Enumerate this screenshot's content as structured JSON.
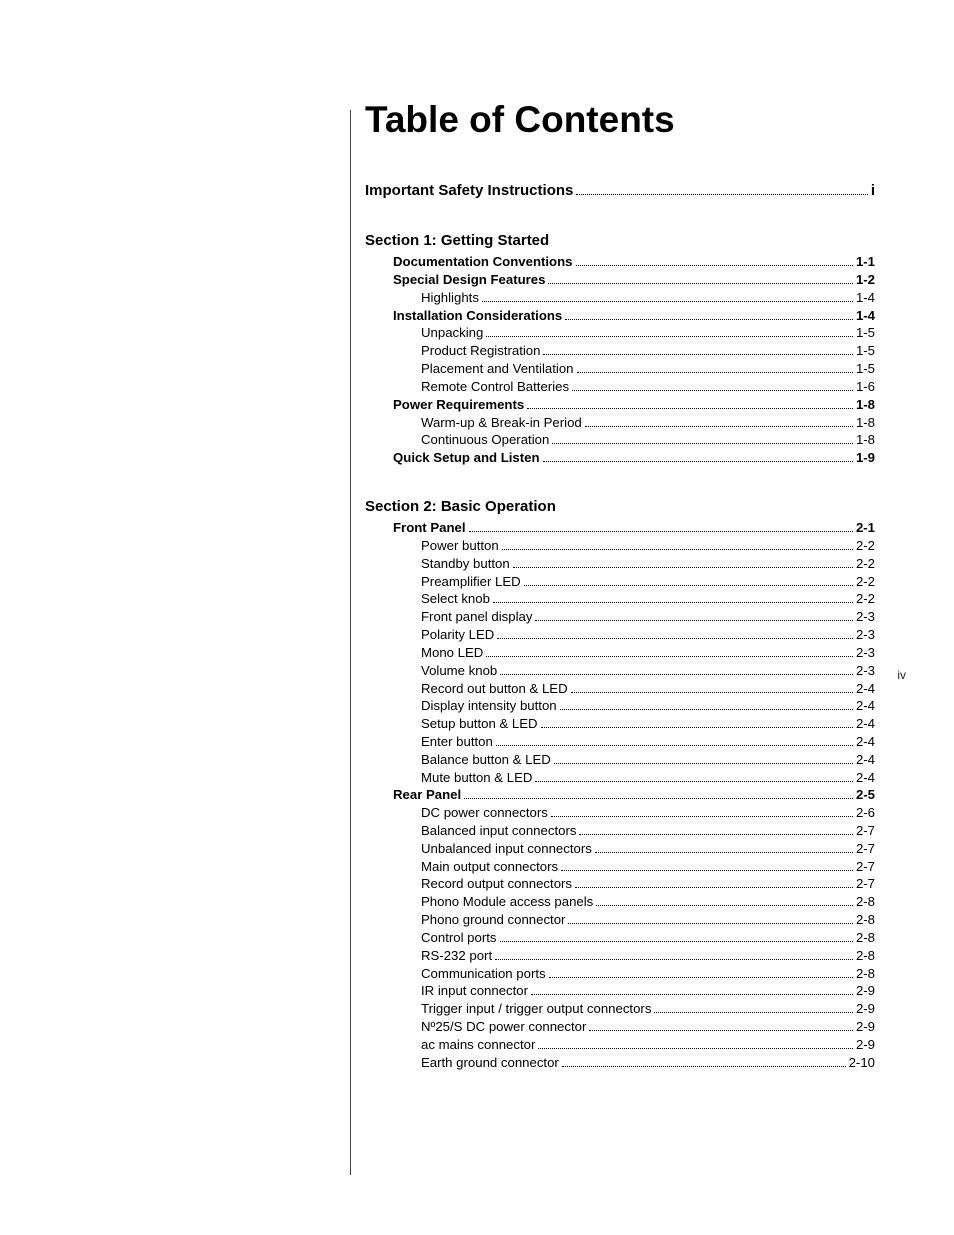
{
  "title": "Table of Contents",
  "side_page_num": "iv",
  "entries": [
    {
      "level": "top",
      "label": "Important Safety Instructions",
      "page": "i"
    },
    {
      "level": "section",
      "label": "Section 1: Getting Started"
    },
    {
      "level": 1,
      "label": "Documentation Conventions",
      "page": "1-1"
    },
    {
      "level": 1,
      "label": "Special Design Features",
      "page": "1-2"
    },
    {
      "level": 2,
      "label": "Highlights",
      "page": "1-4"
    },
    {
      "level": 1,
      "label": "Installation Considerations",
      "page": "1-4"
    },
    {
      "level": 2,
      "label": "Unpacking",
      "page": "1-5"
    },
    {
      "level": 2,
      "label": "Product Registration",
      "page": "1-5"
    },
    {
      "level": 2,
      "label": "Placement and Ventilation",
      "page": "1-5"
    },
    {
      "level": 2,
      "label": "Remote Control Batteries",
      "page": "1-6"
    },
    {
      "level": 1,
      "label": "Power Requirements",
      "page": "1-8"
    },
    {
      "level": 2,
      "label": "Warm-up & Break-in Period",
      "page": "1-8"
    },
    {
      "level": 2,
      "label": "Continuous Operation",
      "page": "1-8"
    },
    {
      "level": 1,
      "label": "Quick Setup and Listen",
      "page": "1-9"
    },
    {
      "level": "section",
      "label": "Section 2: Basic Operation"
    },
    {
      "level": 1,
      "label": "Front Panel",
      "page": "2-1"
    },
    {
      "level": 2,
      "label": "Power button",
      "page": "2-2"
    },
    {
      "level": 2,
      "label": "Standby button",
      "page": "2-2"
    },
    {
      "level": 2,
      "label": "Preamplifier LED",
      "page": "2-2"
    },
    {
      "level": 2,
      "label": "Select knob",
      "page": "2-2"
    },
    {
      "level": 2,
      "label": "Front panel display",
      "page": "2-3"
    },
    {
      "level": 2,
      "label": "Polarity LED",
      "page": "2-3"
    },
    {
      "level": 2,
      "label": "Mono LED",
      "page": "2-3"
    },
    {
      "level": 2,
      "label": "Volume knob",
      "page": "2-3"
    },
    {
      "level": 2,
      "label": "Record out button & LED",
      "page": "2-4"
    },
    {
      "level": 2,
      "label": "Display intensity button",
      "page": "2-4"
    },
    {
      "level": 2,
      "label": "Setup button & LED",
      "page": "2-4"
    },
    {
      "level": 2,
      "label": "Enter button",
      "page": "2-4"
    },
    {
      "level": 2,
      "label": "Balance button & LED",
      "page": "2-4"
    },
    {
      "level": 2,
      "label": "Mute button & LED",
      "page": "2-4"
    },
    {
      "level": 1,
      "label": "Rear Panel",
      "page": "2-5"
    },
    {
      "level": 2,
      "label": "DC power connectors",
      "page": "2-6"
    },
    {
      "level": 2,
      "label": "Balanced input connectors",
      "page": "2-7"
    },
    {
      "level": 2,
      "label": "Unbalanced input connectors",
      "page": "2-7"
    },
    {
      "level": 2,
      "label": "Main output connectors",
      "page": "2-7"
    },
    {
      "level": 2,
      "label": "Record output connectors",
      "page": "2-7"
    },
    {
      "level": 2,
      "label": "Phono Module access panels",
      "page": "2-8"
    },
    {
      "level": 2,
      "label": "Phono ground connector",
      "page": "2-8"
    },
    {
      "level": 2,
      "label": "Control ports",
      "page": "2-8"
    },
    {
      "level": 2,
      "label": "RS-232 port",
      "page": "2-8"
    },
    {
      "level": 2,
      "label": "Communication ports",
      "page": "2-8"
    },
    {
      "level": 2,
      "label": "IR input connector",
      "page": "2-9"
    },
    {
      "level": 2,
      "label": "Trigger input / trigger output connectors",
      "page": "2-9"
    },
    {
      "level": 2,
      "label": "Nº25/S DC power connector",
      "page": "2-9"
    },
    {
      "level": 2,
      "label": "ac mains connector",
      "page": "2-9"
    },
    {
      "level": 2,
      "label": "Earth ground connector",
      "page": "2-10"
    }
  ]
}
